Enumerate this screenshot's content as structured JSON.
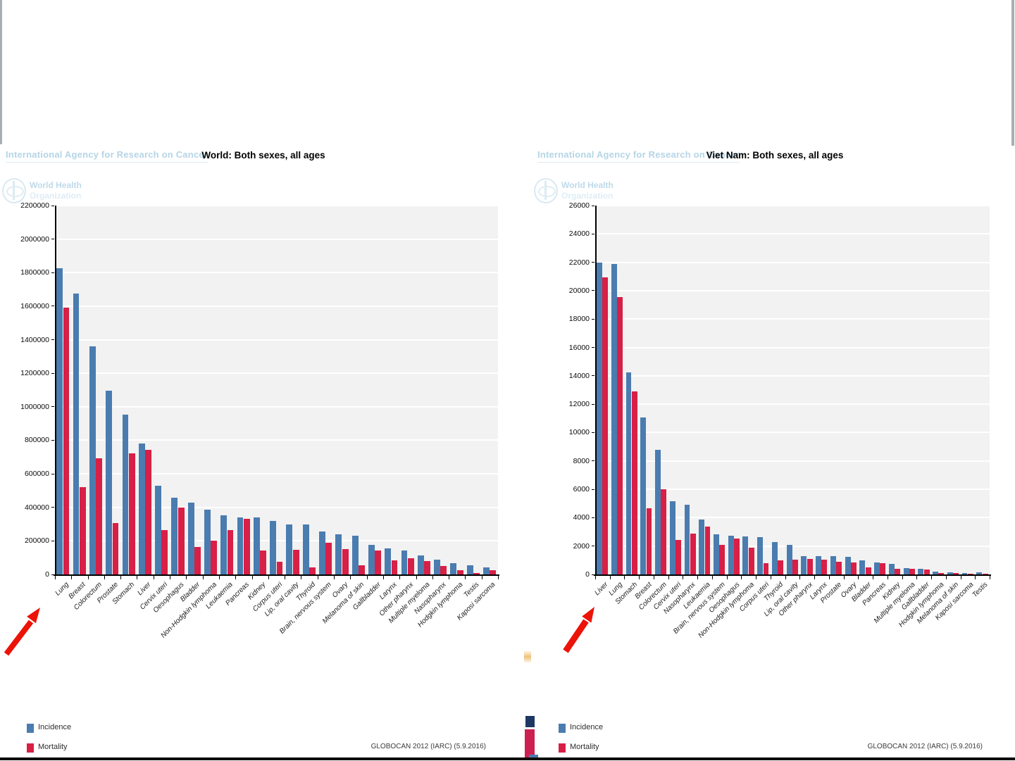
{
  "page": {
    "side_border_color": "#a9aeb3",
    "arrow_color": "#ec1309",
    "plot_background": "#f1f2f1",
    "stray_marks": {
      "navy_block_color": "#1e3864",
      "crimson_block_color": "#cc2050",
      "blue_sliver_color": "#4a7cb0",
      "orange_sliver_color": "#efc27c"
    }
  },
  "charts": [
    {
      "agency_header": "International Agency for Research on Cancer",
      "who_logo_line1": "World Health",
      "who_logo_line2": "Organization",
      "title": "World: Both sexes, all ages",
      "source": "GLOBOCAN 2012 (IARC) (5.9.2016)",
      "legend": [
        {
          "label": "Incidence",
          "color": "#4a7cb0"
        },
        {
          "label": "Mortality",
          "color": "#d81f46"
        }
      ],
      "chart_data": {
        "type": "bar",
        "title": "World: Both sexes, all ages",
        "xlabel": "",
        "ylabel": "",
        "ylim": [
          0,
          2200000
        ],
        "ytick_step": 200000,
        "grid": true,
        "legend_position": "bottom-left",
        "categories": [
          "Lung",
          "Breast",
          "Colorectum",
          "Prostate",
          "Stomach",
          "Liver",
          "Cervix uteri",
          "Oesophagus",
          "Bladder",
          "Non-Hodgkin lymphoma",
          "Leukaemia",
          "Pancreas",
          "Kidney",
          "Corpus uteri",
          "Lip, oral cavity",
          "Thyroid",
          "Brain, nervous system",
          "Ovary",
          "Melanoma of skin",
          "Gallbladder",
          "Larynx",
          "Other pharynx",
          "Multiple myeloma",
          "Nasopharynx",
          "Hodgkin lymphoma",
          "Testis",
          "Kaposi sarcoma"
        ],
        "series": [
          {
            "name": "Incidence",
            "color": "#4a7cb0",
            "values": [
              1825000,
              1677000,
              1361000,
              1095000,
              952000,
              782000,
              528000,
              456000,
              429000,
              386000,
              352000,
              338000,
              338000,
              320000,
              300000,
              298000,
              256000,
              239000,
              232000,
              178000,
              157000,
              142000,
              114000,
              87000,
              66000,
              55000,
              44000
            ]
          },
          {
            "name": "Mortality",
            "color": "#d81f46",
            "values": [
              1590000,
              522000,
              694000,
              307000,
              723000,
              745000,
              266000,
              400000,
              165000,
              200000,
              265000,
              330000,
              143000,
              76000,
              145000,
              40000,
              189000,
              152000,
              55000,
              143000,
              83000,
              96000,
              80000,
              51000,
              25000,
              10000,
              27000
            ]
          }
        ]
      }
    },
    {
      "agency_header": "International Agency for Research on Cancer",
      "who_logo_line1": "World Health",
      "who_logo_line2": "Organization",
      "title": "Viet Nam: Both sexes, all ages",
      "source": "GLOBOCAN 2012 (IARC) (5.9.2016)",
      "legend": [
        {
          "label": "Incidence",
          "color": "#4a7cb0"
        },
        {
          "label": "Mortality",
          "color": "#d81f46"
        }
      ],
      "chart_data": {
        "type": "bar",
        "title": "Viet Nam: Both sexes, all ages",
        "xlabel": "",
        "ylabel": "",
        "ylim": [
          0,
          26000
        ],
        "ytick_step": 2000,
        "grid": true,
        "legend_position": "bottom-left",
        "categories": [
          "Liver",
          "Lung",
          "Stomach",
          "Breast",
          "Colorectum",
          "Cervix uteri",
          "Nasopharynx",
          "Leukaemia",
          "Brain, nervous system",
          "Oesophagus",
          "Non-Hodgkin lymphoma",
          "Corpus uteri",
          "Thyroid",
          "Lip, oral cavity",
          "Other pharynx",
          "Larynx",
          "Prostate",
          "Ovary",
          "Bladder",
          "Pancreas",
          "Kidney",
          "Multiple myeloma",
          "Gallbladder",
          "Hodgkin lymphoma",
          "Melanoma of skin",
          "Kaposi sarcoma",
          "Testis"
        ],
        "series": [
          {
            "name": "Incidence",
            "color": "#4a7cb0",
            "values": [
              22000,
              21870,
              14230,
              11070,
              8770,
              5150,
              4930,
              3850,
              2840,
              2730,
              2660,
              2640,
              2300,
              2100,
              1300,
              1290,
              1280,
              1220,
              1000,
              830,
              750,
              450,
              400,
              200,
              160,
              100,
              160
            ]
          },
          {
            "name": "Mortality",
            "color": "#d81f46",
            "values": [
              20920,
              19560,
              12910,
              4670,
              5980,
              2420,
              2880,
              3380,
              2080,
              2550,
              1880,
              800,
              1000,
              1050,
              1090,
              1040,
              870,
              860,
              500,
              790,
              380,
              390,
              350,
              100,
              100,
              50,
              50
            ]
          }
        ]
      }
    }
  ]
}
